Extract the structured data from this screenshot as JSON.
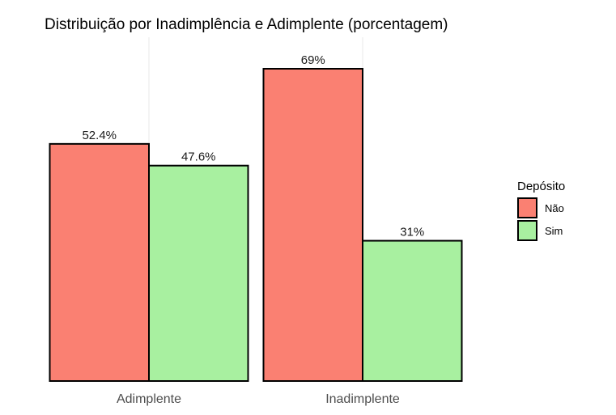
{
  "chart_data": {
    "type": "bar",
    "title": "Distribuição por Inadimplência e Adimplente (porcentagem)",
    "xlabel": "",
    "ylabel": "",
    "categories": [
      "Adimplente",
      "Inadimplente"
    ],
    "series": [
      {
        "name": "Não",
        "values": [
          52.4,
          69
        ],
        "labels": [
          "52.4%",
          "69%"
        ],
        "color": "#FA8072"
      },
      {
        "name": "Sim",
        "values": [
          47.6,
          31
        ],
        "labels": [
          "47.6%",
          "31%"
        ],
        "color": "#A8F0A0"
      }
    ],
    "ylim": [
      0,
      69
    ],
    "legend": {
      "title": "Depósito",
      "position": "right"
    },
    "grid": {
      "major_x": true,
      "major_y": false,
      "color": "#ebebeb"
    },
    "bar_border_color": "#000000"
  }
}
